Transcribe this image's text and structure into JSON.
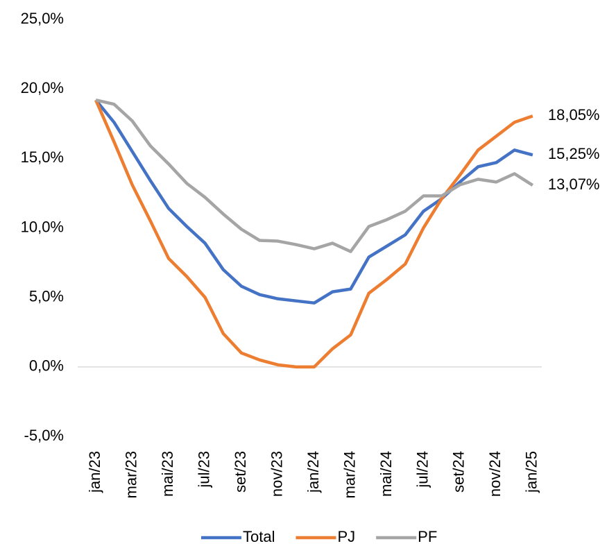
{
  "chart_data": {
    "type": "line",
    "categories": [
      "jan/23",
      null,
      "mar/23",
      null,
      "mai/23",
      null,
      "jul/23",
      null,
      "set/23",
      null,
      "nov/23",
      null,
      "jan/24",
      null,
      "mar/24",
      null,
      "mai/24",
      null,
      "jul/24",
      null,
      "set/24",
      null,
      "nov/24",
      null,
      "jan/25"
    ],
    "series": [
      {
        "name": "Total",
        "color": "#4472c4",
        "values": [
          19.2,
          17.6,
          15.5,
          13.4,
          11.4,
          10.1,
          8.9,
          7.0,
          5.8,
          5.2,
          4.9,
          4.75,
          4.6,
          5.4,
          5.6,
          7.9,
          8.7,
          9.5,
          11.2,
          12.1,
          13.3,
          14.4,
          14.7,
          15.6,
          15.25
        ],
        "value_labels": [
          null,
          null,
          null,
          null,
          null,
          null,
          null,
          null,
          null,
          null,
          null,
          null,
          null,
          null,
          null,
          null,
          null,
          null,
          null,
          null,
          null,
          null,
          null,
          null,
          "15,25%"
        ]
      },
      {
        "name": "PJ",
        "color": "#ed7d31",
        "values": [
          19.2,
          16.2,
          13.1,
          10.5,
          7.8,
          6.5,
          5.0,
          2.4,
          1.0,
          0.5,
          0.15,
          0.0,
          0.0,
          1.3,
          2.3,
          5.3,
          6.3,
          7.4,
          10.0,
          12.1,
          13.8,
          15.6,
          16.6,
          17.6,
          18.05
        ],
        "value_labels": [
          null,
          null,
          null,
          null,
          null,
          null,
          null,
          null,
          null,
          null,
          null,
          null,
          null,
          null,
          null,
          null,
          null,
          null,
          null,
          null,
          null,
          null,
          null,
          null,
          "18,05%"
        ]
      },
      {
        "name": "PF",
        "color": "#a5a5a5",
        "values": [
          19.2,
          18.9,
          17.7,
          15.9,
          14.6,
          13.2,
          12.2,
          11.0,
          9.9,
          9.1,
          9.05,
          8.8,
          8.5,
          8.9,
          8.3,
          10.1,
          10.6,
          11.2,
          12.3,
          12.3,
          13.1,
          13.5,
          13.3,
          13.9,
          13.07
        ],
        "value_labels": [
          null,
          null,
          null,
          null,
          null,
          null,
          null,
          null,
          null,
          null,
          null,
          null,
          null,
          null,
          null,
          null,
          null,
          null,
          null,
          null,
          null,
          null,
          null,
          null,
          "13,07%"
        ]
      }
    ],
    "ylim": [
      -5,
      25
    ],
    "yticks": [
      {
        "value": -5,
        "label": "-5,0%"
      },
      {
        "value": 0,
        "label": "0,0%"
      },
      {
        "value": 5,
        "label": "5,0%"
      },
      {
        "value": 10,
        "label": "10,0%"
      },
      {
        "value": 15,
        "label": "15,0%"
      },
      {
        "value": 20,
        "label": "20,0%"
      },
      {
        "value": 25,
        "label": "25,0%"
      }
    ],
    "grid": false,
    "legend": "bottom"
  }
}
